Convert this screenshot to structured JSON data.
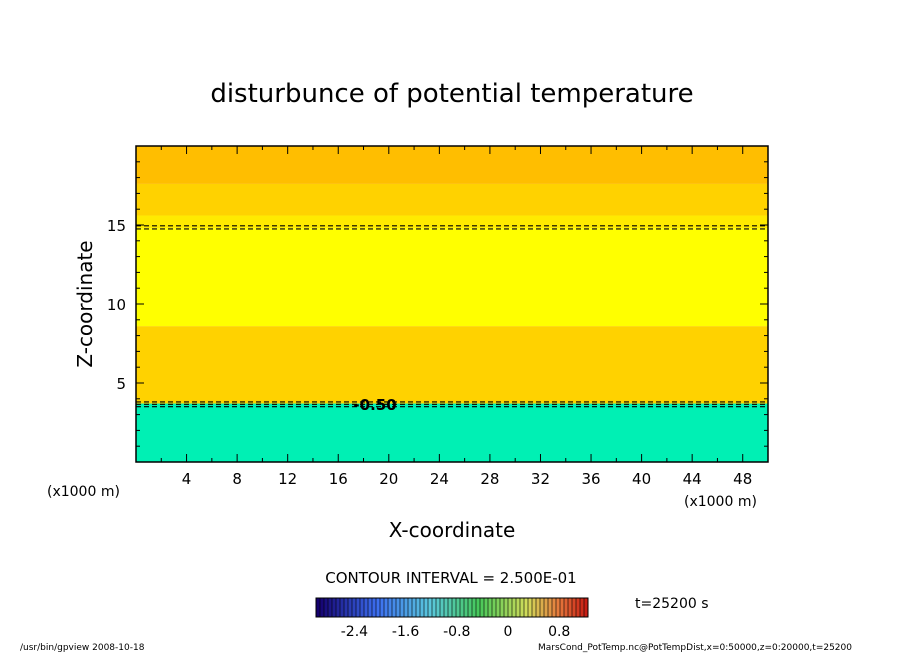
{
  "chart_data": {
    "type": "heatmap",
    "title": "disturbunce of potential temperature",
    "xlabel": "X-coordinate",
    "ylabel": "Z-coordinate",
    "x_unit_left": "(x1000 m)",
    "x_unit_right": "(x1000 m)",
    "xlim": [
      0,
      50
    ],
    "ylim": [
      0,
      20
    ],
    "xticks": [
      "4",
      "8",
      "12",
      "16",
      "20",
      "24",
      "28",
      "32",
      "36",
      "40",
      "44",
      "48"
    ],
    "yticks": [
      "5",
      "10",
      "15"
    ],
    "bands": [
      {
        "z0": 0.0,
        "z1": 3.7,
        "value": -0.6,
        "color": "#00f0b4"
      },
      {
        "z0": 3.7,
        "z1": 8.6,
        "value": 0.25,
        "color": "#ffd200"
      },
      {
        "z0": 8.6,
        "z1": 14.8,
        "value": 0.35,
        "color": "#ffff00"
      },
      {
        "z0": 14.8,
        "z1": 15.6,
        "value": 0.3,
        "color": "#ffea00"
      },
      {
        "z0": 15.6,
        "z1": 17.6,
        "value": 0.25,
        "color": "#ffd200"
      },
      {
        "z0": 17.6,
        "z1": 20.0,
        "value": 0.15,
        "color": "#ffbe00"
      }
    ],
    "contour_lines_z": [
      3.5,
      3.65,
      3.8,
      14.75,
      14.95
    ],
    "contour_label": "-0.50",
    "contour_interval_text": "CONTOUR INTERVAL = 2.500E-01",
    "time_text": "t=25200 s",
    "colorbar": {
      "ticks": [
        "-2.4",
        "-1.6",
        "-0.8",
        "0",
        "0.8"
      ],
      "range": [
        -3.0,
        1.25
      ]
    },
    "grid": false
  },
  "footer": {
    "left": "/usr/bin/gpview   2008-10-18",
    "right": "MarsCond_PotTemp.nc@PotTempDist,x=0:50000,z=0:20000,t=25200"
  }
}
